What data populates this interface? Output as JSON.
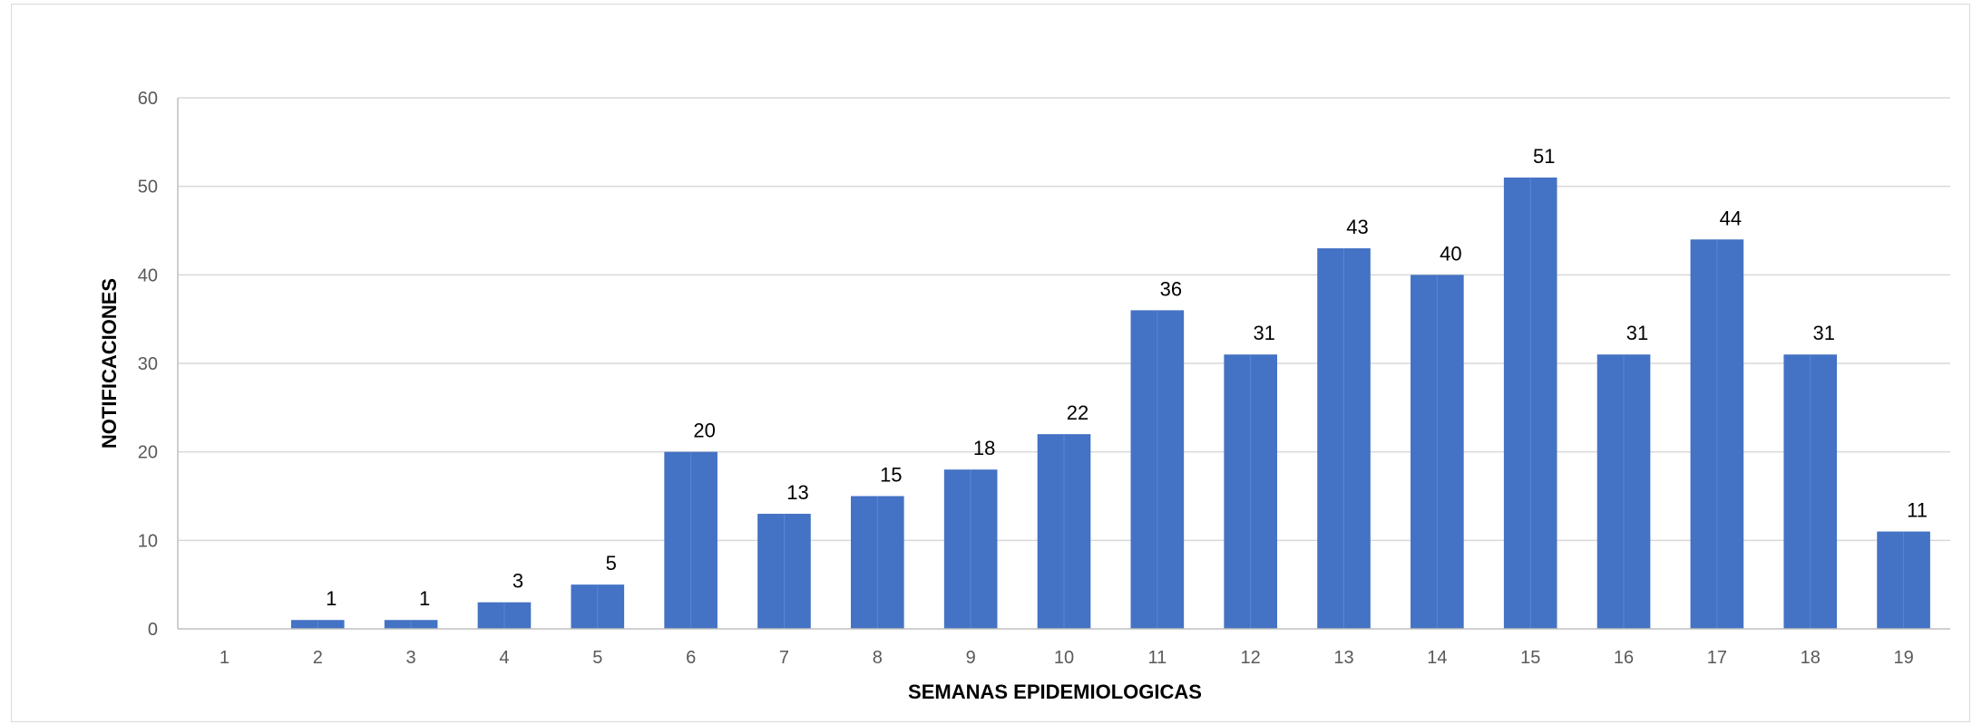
{
  "chart_data": {
    "type": "bar",
    "categories": [
      "1",
      "2",
      "3",
      "4",
      "5",
      "6",
      "7",
      "8",
      "9",
      "10",
      "11",
      "12",
      "13",
      "14",
      "15",
      "16",
      "17",
      "18",
      "19"
    ],
    "values": [
      0,
      1,
      1,
      3,
      5,
      20,
      13,
      15,
      18,
      22,
      36,
      31,
      43,
      40,
      51,
      31,
      44,
      31,
      11
    ],
    "data_labels": [
      "",
      "1",
      "1",
      "3",
      "5",
      "20",
      "13",
      "15",
      "18",
      "22",
      "36",
      "31",
      "43",
      "40",
      "51",
      "31",
      "44",
      "31",
      "11"
    ],
    "xlabel": "SEMANAS EPIDEMIOLOGICAS",
    "ylabel": "NOTIFICACIONES",
    "ylim": [
      0,
      60
    ],
    "yticks": [
      0,
      10,
      20,
      30,
      40,
      50,
      60
    ],
    "grid": true,
    "legend": "none",
    "bar_color": "#4472C4"
  }
}
